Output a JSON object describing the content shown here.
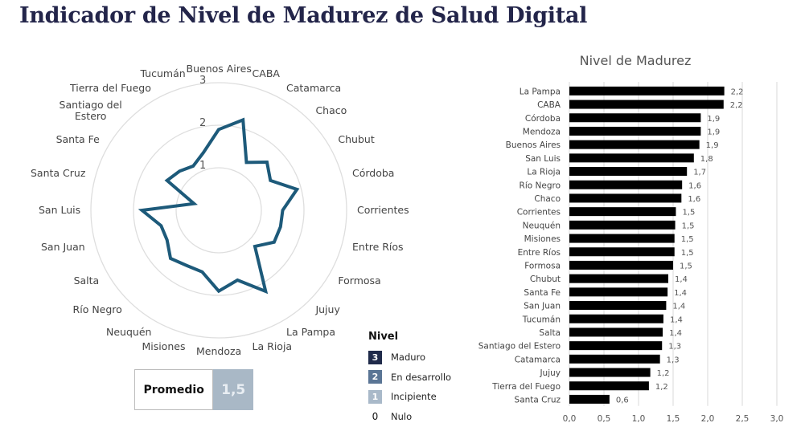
{
  "page": {
    "title": "Indicador de Nivel de Madurez de Salud Digital"
  },
  "summary": {
    "label": "Promedio",
    "value": "1,5",
    "value_color": "#a9b8c6"
  },
  "legend": {
    "title": "Nivel",
    "items": [
      {
        "code": "3",
        "label": "Maduro",
        "color": "#1f2a4a"
      },
      {
        "code": "2",
        "label": "En desarrollo",
        "color": "#5a7595"
      },
      {
        "code": "1",
        "label": "Incipiente",
        "color": "#a9b9c9"
      },
      {
        "code": "0",
        "label": "Nulo",
        "color": ""
      }
    ]
  },
  "chart_data": [
    {
      "type": "radar",
      "title": "",
      "axes": [
        "Buenos Aires",
        "CABA",
        "Catamarca",
        "Chaco",
        "Chubut",
        "Córdoba",
        "Corrientes",
        "Entre Ríos",
        "Formosa",
        "Jujuy",
        "La Pampa",
        "La Rioja",
        "Mendoza",
        "Misiones",
        "Neuquén",
        "Río Negro",
        "Salta",
        "San Juan",
        "San Luis",
        "Santa Cruz",
        "Santa Fe",
        "Santiago del Estero",
        "Tierra del Fuego",
        "Tucumán"
      ],
      "axis_labels": [
        "Buenos Aires",
        "CABA",
        "Catamarca",
        "Chaco",
        "Chubut",
        "Córdoba",
        "Corrientes",
        "Entre Ríos",
        "Formosa",
        "Jujuy",
        "La Pampa",
        "La Rioja",
        "Mendoza",
        "Misiones",
        "Neuquén",
        "Río Negro",
        "Salta",
        "San Juan",
        "San Luis",
        "Santa Cruz",
        "Santa Fe",
        "Santiago del\nEstero",
        "Tierra del Fuego",
        "Tucumán"
      ],
      "values": [
        1.9,
        2.2,
        1.3,
        1.6,
        1.4,
        1.9,
        1.5,
        1.5,
        1.5,
        1.2,
        2.2,
        1.7,
        1.9,
        1.5,
        1.5,
        1.6,
        1.4,
        1.4,
        1.8,
        0.6,
        1.4,
        1.3,
        1.2,
        1.4
      ],
      "rings": [
        1,
        2,
        3
      ],
      "ring_labels": [
        "1",
        "2",
        "3"
      ],
      "range": [
        0,
        3
      ],
      "line_color": "#1d5a7a"
    },
    {
      "type": "bar",
      "orientation": "horizontal",
      "title": "Nivel de Madurez",
      "categories": [
        "La Pampa",
        "CABA",
        "Córdoba",
        "Mendoza",
        "Buenos Aires",
        "San Luis",
        "La Rioja",
        "Río Negro",
        "Chaco",
        "Corrientes",
        "Neuquén",
        "Misiones",
        "Entre Ríos",
        "Formosa",
        "Chubut",
        "Santa Fe",
        "San Juan",
        "Tucumán",
        "Salta",
        "Santiago del Estero",
        "Catamarca",
        "Jujuy",
        "Tierra del Fuego",
        "Santa Cruz"
      ],
      "values": [
        2.24,
        2.23,
        1.9,
        1.9,
        1.88,
        1.8,
        1.7,
        1.63,
        1.62,
        1.54,
        1.53,
        1.52,
        1.52,
        1.5,
        1.43,
        1.42,
        1.4,
        1.36,
        1.35,
        1.34,
        1.31,
        1.17,
        1.15,
        0.58
      ],
      "value_labels": [
        "2,2",
        "2,2",
        "1,9",
        "1,9",
        "1,9",
        "1,8",
        "1,7",
        "1,6",
        "1,6",
        "1,5",
        "1,5",
        "1,5",
        "1,5",
        "1,5",
        "1,4",
        "1,4",
        "1,4",
        "1,4",
        "1,4",
        "1,3",
        "1,3",
        "1,2",
        "1,2",
        "0,6"
      ],
      "xticks": [
        "0,0",
        "0,5",
        "1,0",
        "1,5",
        "2,0",
        "2,5",
        "3,0"
      ],
      "xlim": [
        0,
        3
      ],
      "grid": true,
      "bar_color": "#000000",
      "xlabel": "",
      "ylabel": ""
    }
  ]
}
